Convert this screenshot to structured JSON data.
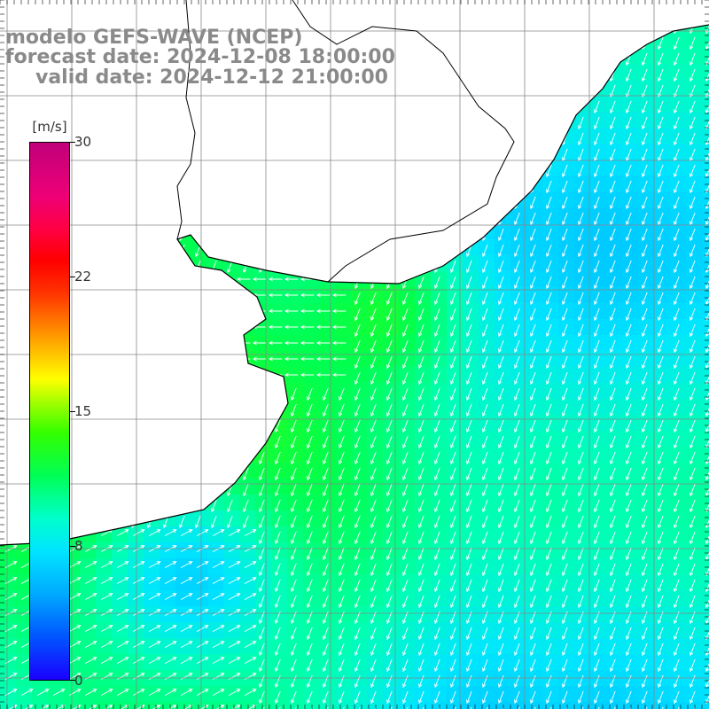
{
  "title": {
    "line1": "modelo GEFS-WAVE (NCEP)",
    "line2": "forecast date: 2024-12-08 18:00:00",
    "line3": "valid date: 2024-12-12 21:00:00"
  },
  "colorbar": {
    "unit": "[m/s]",
    "ticks": [
      "30",
      "22",
      "15",
      "8",
      "0"
    ],
    "tick_values": [
      30,
      22,
      15,
      8,
      0
    ],
    "range": [
      0,
      30
    ]
  },
  "colors": {
    "land": "#ffffff",
    "coastline": "#000000",
    "grid": "#888888",
    "arrows": "#ffffff"
  },
  "map": {
    "variable": "wind speed",
    "region": "South Atlantic / Rio de la Plata"
  }
}
